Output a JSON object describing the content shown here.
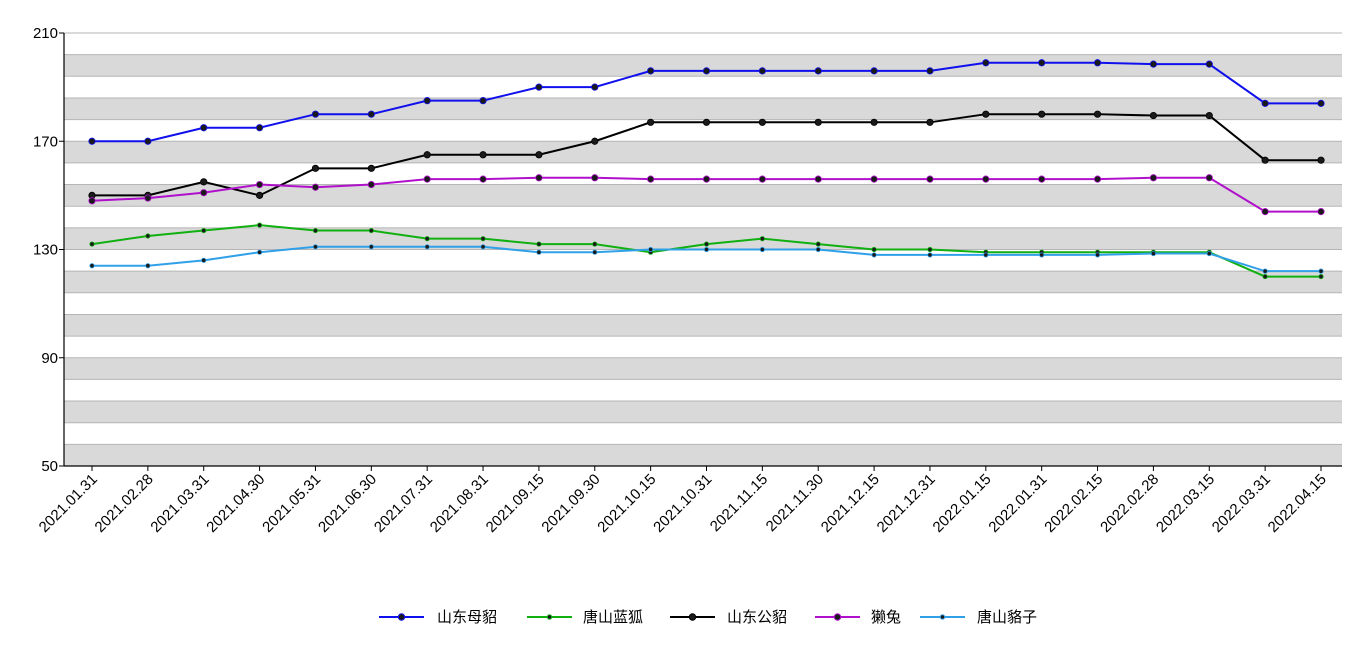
{
  "chart_data": {
    "type": "line",
    "categories": [
      "2021.01.31",
      "2021.02.28",
      "2021.03.31",
      "2021.04.30",
      "2021.05.31",
      "2021.06.30",
      "2021.07.31",
      "2021.08.31",
      "2021.09.15",
      "2021.09.30",
      "2021.10.15",
      "2021.10.31",
      "2021.11.15",
      "2021.11.30",
      "2021.12.15",
      "2021.12.31",
      "2022.01.15",
      "2022.01.31",
      "2022.02.15",
      "2022.02.28",
      "2022.03.15",
      "2022.03.31",
      "2022.04.15"
    ],
    "yticks": [
      50,
      90,
      130,
      170,
      210
    ],
    "ylim": [
      50,
      210
    ],
    "grid": "alternating horizontal bands",
    "legend_position": "bottom",
    "series": [
      {
        "name": "山东母貂",
        "color": "#1010ee",
        "marker": "circle",
        "values": [
          170,
          170,
          175,
          175,
          180,
          180,
          185,
          185,
          190,
          190,
          196,
          196,
          196,
          196,
          196,
          196,
          199,
          199,
          199,
          198.5,
          198.5,
          184,
          184
        ]
      },
      {
        "name": "唐山蓝狐",
        "color": "#10b010",
        "marker": "dot",
        "values": [
          132,
          135,
          137,
          139,
          137,
          137,
          134,
          134,
          132,
          132,
          129,
          132,
          134,
          132,
          130,
          130,
          129,
          129,
          129,
          129,
          129,
          120,
          120
        ]
      },
      {
        "name": "山东公貂",
        "color": "#000000",
        "marker": "circle",
        "values": [
          150,
          150,
          155,
          150,
          160,
          160,
          165,
          165,
          165,
          170,
          177,
          177,
          177,
          177,
          177,
          177,
          180,
          180,
          180,
          179.5,
          179.5,
          163,
          163
        ]
      },
      {
        "name": "獭兔",
        "color": "#b010cc",
        "marker": "circle",
        "values": [
          148,
          149,
          151,
          154,
          153,
          154,
          156,
          156,
          156.5,
          156.5,
          156,
          156,
          156,
          156,
          156,
          156,
          156,
          156,
          156,
          156.5,
          156.5,
          144,
          144
        ]
      },
      {
        "name": "唐山貉子",
        "color": "#30a0e8",
        "marker": "dot",
        "values": [
          124,
          124,
          126,
          129,
          131,
          131,
          131,
          131,
          129,
          129,
          130,
          130,
          130,
          130,
          128,
          128,
          128,
          128,
          128,
          128.5,
          128.5,
          122,
          122
        ]
      }
    ]
  }
}
